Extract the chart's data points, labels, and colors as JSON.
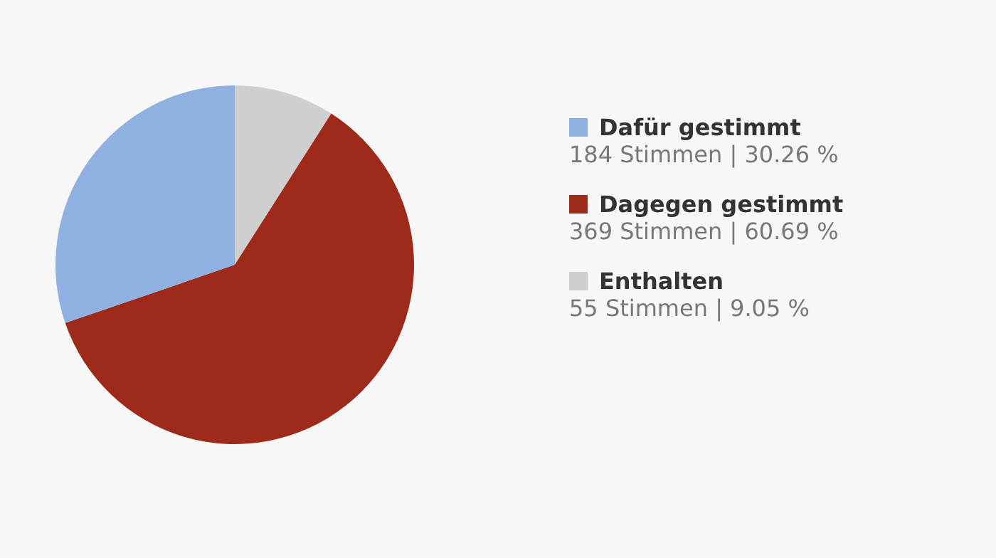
{
  "chart_data": {
    "type": "pie",
    "categories": [
      "Dafür gestimmt",
      "Dagegen gestimmt",
      "Enthalten"
    ],
    "values": [
      184,
      369,
      55
    ],
    "value_labels": [
      "184 Stimmen | 30.26 %",
      "369 Stimmen | 60.69 %",
      "55 Stimmen | 9.05 %"
    ],
    "colors": [
      "#8fb0e0",
      "#9e2b19",
      "#cfcfcf"
    ],
    "legend": "right"
  }
}
